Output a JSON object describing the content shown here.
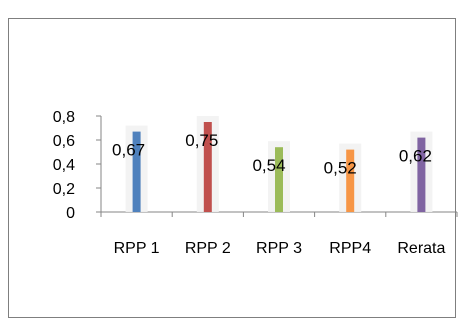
{
  "chart_data": {
    "type": "bar",
    "categories": [
      "RPP 1",
      "RPP 2",
      "RPP 3",
      "RPP4",
      "Rerata"
    ],
    "values": [
      0.67,
      0.75,
      0.54,
      0.52,
      0.62
    ],
    "data_labels": [
      "0,67",
      "0,75",
      "0,54",
      "0,52",
      "0,62"
    ],
    "y_ticks": [
      0,
      0.2,
      0.4,
      0.6,
      0.8
    ],
    "y_tick_labels": [
      "0",
      "0,2",
      "0,4",
      "0,6",
      "0,8"
    ],
    "ylim": [
      0,
      0.8
    ],
    "colors": [
      "#4f81bd",
      "#c0504d",
      "#9bbb59",
      "#f79646",
      "#8064a2"
    ],
    "grid": false,
    "legend": "none"
  }
}
